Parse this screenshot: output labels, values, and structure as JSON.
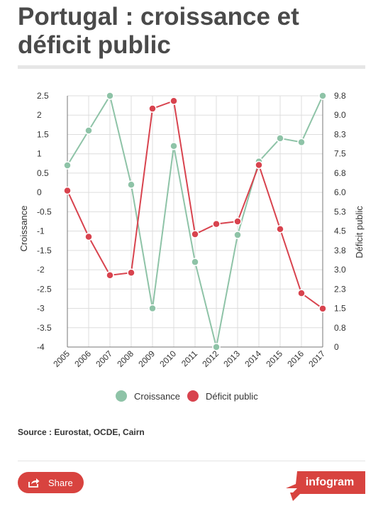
{
  "title": "Portugal : croissance et déficit public",
  "source": "Source : Eurostat, OCDE, Cairn",
  "share_label": "Share",
  "brand_label": "infogram",
  "colors": {
    "croissance": "#8ec3a7",
    "deficit": "#d8434e",
    "share": "#d8433f",
    "grid": "#dddddd"
  },
  "chart_data": {
    "type": "line",
    "categories": [
      "2005",
      "2006",
      "2007",
      "2008",
      "2009",
      "2010",
      "2011",
      "2012",
      "2013",
      "2014",
      "2015",
      "2016",
      "2017"
    ],
    "series": [
      {
        "name": "Croissance",
        "axis": "left",
        "values": [
          0.7,
          1.6,
          2.5,
          0.2,
          -3.0,
          1.2,
          -1.8,
          -4.0,
          -1.1,
          0.8,
          1.4,
          1.3,
          2.5
        ]
      },
      {
        "name": "Déficit public",
        "axis": "right",
        "values": [
          6.1,
          4.3,
          2.8,
          2.9,
          9.3,
          9.6,
          4.4,
          4.8,
          4.9,
          7.1,
          4.6,
          2.1,
          1.5
        ]
      }
    ],
    "y_left": {
      "label": "Croissance",
      "range": [
        -4,
        2.5
      ],
      "ticks": [
        "2.5",
        "2",
        "1.5",
        "1",
        "0.5",
        "0",
        "-0.5",
        "-1",
        "-1.5",
        "-2",
        "-2.5",
        "-3",
        "-3.5",
        "-4"
      ]
    },
    "y_right": {
      "label": "Déficit public",
      "range": [
        0,
        9.8
      ],
      "ticks": [
        "9.8",
        "9.0",
        "8.3",
        "7.5",
        "6.8",
        "6.0",
        "5.3",
        "4.5",
        "3.8",
        "3.0",
        "2.3",
        "1.5",
        "0.8",
        "0"
      ]
    },
    "grid": true,
    "legend": "bottom"
  }
}
